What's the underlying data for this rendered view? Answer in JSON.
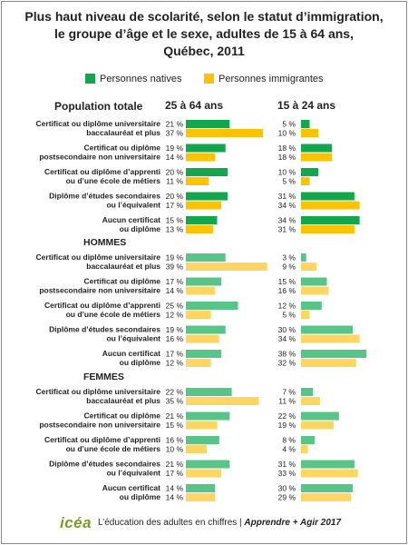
{
  "chart_data": {
    "type": "bar",
    "orientation": "horizontal",
    "title": [
      "Plus haut niveau de scolarité, selon le statut d’immigration,",
      "le groupe d’âge et le sexe, adultes de 15 à 64 ans,",
      "Québec, 2011"
    ],
    "legend": [
      {
        "name": "Personnes natives",
        "color": "#13a64e"
      },
      {
        "name": "Personnes immigrantes",
        "color": "#fdc300"
      }
    ],
    "columns": [
      "25 à 64 ans",
      "15 à 24 ans"
    ],
    "value_unit": " %",
    "categories": [
      [
        "Certificat ou diplôme universitaire",
        "baccalauréat et plus"
      ],
      [
        "Certificat ou diplôme",
        "postsecondaire non universitaire"
      ],
      [
        "Certificat ou diplôme d’apprenti",
        "ou d’une école de métiers"
      ],
      [
        "Diplôme d’études secondaires",
        "ou l’équivalent"
      ],
      [
        "Aucun certificat",
        "ou diplôme"
      ]
    ],
    "groups": [
      {
        "name": "Population totale",
        "native_color": "#13a64e",
        "immigrant_color": "#fdc300",
        "values": {
          "25 à 64 ans": {
            "natives": [
              21,
              19,
              20,
              20,
              15
            ],
            "immigrantes": [
              37,
              14,
              11,
              17,
              13
            ]
          },
          "15 à 24 ans": {
            "natives": [
              5,
              18,
              10,
              31,
              34
            ],
            "immigrantes": [
              10,
              18,
              5,
              34,
              31
            ]
          }
        }
      },
      {
        "name": "HOMMES",
        "native_color": "#59c487",
        "immigrant_color": "#ffd661",
        "values": {
          "25 à 64 ans": {
            "natives": [
              19,
              17,
              25,
              19,
              17
            ],
            "immigrantes": [
              39,
              14,
              12,
              16,
              12
            ]
          },
          "15 à 24 ans": {
            "natives": [
              3,
              15,
              12,
              30,
              38
            ],
            "immigrantes": [
              9,
              16,
              5,
              34,
              32
            ]
          }
        }
      },
      {
        "name": "FEMMES",
        "native_color": "#59c487",
        "immigrant_color": "#ffd661",
        "values": {
          "25 à 64 ans": {
            "natives": [
              22,
              21,
              16,
              21,
              14
            ],
            "immigrantes": [
              35,
              15,
              10,
              17,
              14
            ]
          },
          "15 à 24 ans": {
            "natives": [
              7,
              22,
              8,
              31,
              30
            ],
            "immigrantes": [
              11,
              19,
              4,
              33,
              29
            ]
          }
        }
      }
    ]
  },
  "footer": {
    "logo": "icéa",
    "tagline": "L’éducation des adultes en chiffres | ",
    "tagline_sub": "Apprendre + Agir 2017"
  }
}
